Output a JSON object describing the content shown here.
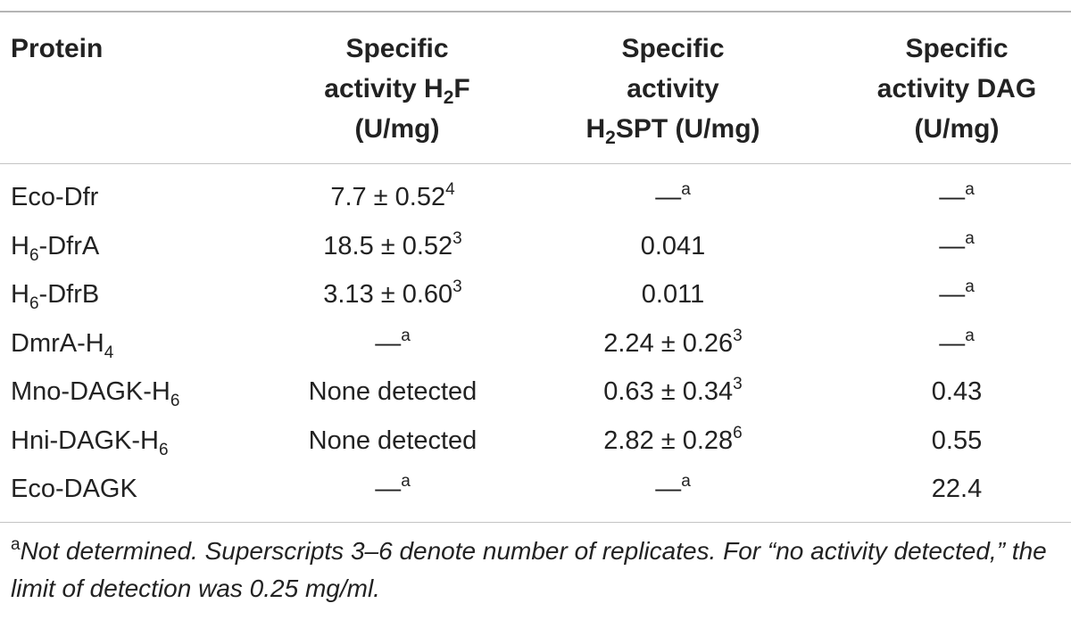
{
  "header": {
    "protein": "Protein",
    "h2f": {
      "pre": "Specific activity H",
      "sub": "2",
      "post": "F (U/mg)"
    },
    "h2spt": {
      "line1": "Specific",
      "line2": "activity",
      "sub_pre": "H",
      "sub": "2",
      "post": "SPT (U/mg)"
    },
    "dag": {
      "line1": "Specific",
      "line2": "activity DAG",
      "line3": "(U/mg)"
    }
  },
  "rows": [
    {
      "protein": {
        "main": "Eco-Dfr",
        "sub": ""
      },
      "h2f": {
        "main": "7.7 ± 0.52",
        "sup": "4"
      },
      "h2spt": {
        "main": "—",
        "sup": "a"
      },
      "dag": {
        "main": "—",
        "sup": "a"
      }
    },
    {
      "protein": {
        "main": "H",
        "sub": "6",
        "tail": "-DfrA"
      },
      "h2f": {
        "main": "18.5 ± 0.52",
        "sup": "3"
      },
      "h2spt": {
        "main": "0.041",
        "sup": ""
      },
      "dag": {
        "main": "—",
        "sup": "a"
      }
    },
    {
      "protein": {
        "main": "H",
        "sub": "6",
        "tail": "-DfrB"
      },
      "h2f": {
        "main": "3.13 ± 0.60",
        "sup": "3"
      },
      "h2spt": {
        "main": "0.011",
        "sup": ""
      },
      "dag": {
        "main": "—",
        "sup": "a"
      }
    },
    {
      "protein": {
        "main": "DmrA-H",
        "sub": "4",
        "tail": ""
      },
      "h2f": {
        "main": "—",
        "sup": "a"
      },
      "h2spt": {
        "main": "2.24 ± 0.26",
        "sup": "3"
      },
      "dag": {
        "main": "—",
        "sup": "a"
      }
    },
    {
      "protein": {
        "main": "Mno-DAGK-H",
        "sub": "6",
        "tail": ""
      },
      "h2f": {
        "main": "None detected",
        "sup": ""
      },
      "h2spt": {
        "main": "0.63 ± 0.34",
        "sup": "3"
      },
      "dag": {
        "main": "0.43",
        "sup": ""
      }
    },
    {
      "protein": {
        "main": "Hni-DAGK-H",
        "sub": "6",
        "tail": ""
      },
      "h2f": {
        "main": "None detected",
        "sup": ""
      },
      "h2spt": {
        "main": "2.82 ± 0.28",
        "sup": "6"
      },
      "dag": {
        "main": "0.55",
        "sup": ""
      }
    },
    {
      "protein": {
        "main": "Eco-DAGK",
        "sub": "",
        "tail": ""
      },
      "h2f": {
        "main": "—",
        "sup": "a"
      },
      "h2spt": {
        "main": "—",
        "sup": "a"
      },
      "dag": {
        "main": "22.4",
        "sup": ""
      }
    }
  ],
  "footnote": {
    "marker": "a",
    "text": "Not determined. Superscripts 3–6 denote number of replicates. For “no activity detected,” the limit of detection was 0.25 mg/ml."
  }
}
